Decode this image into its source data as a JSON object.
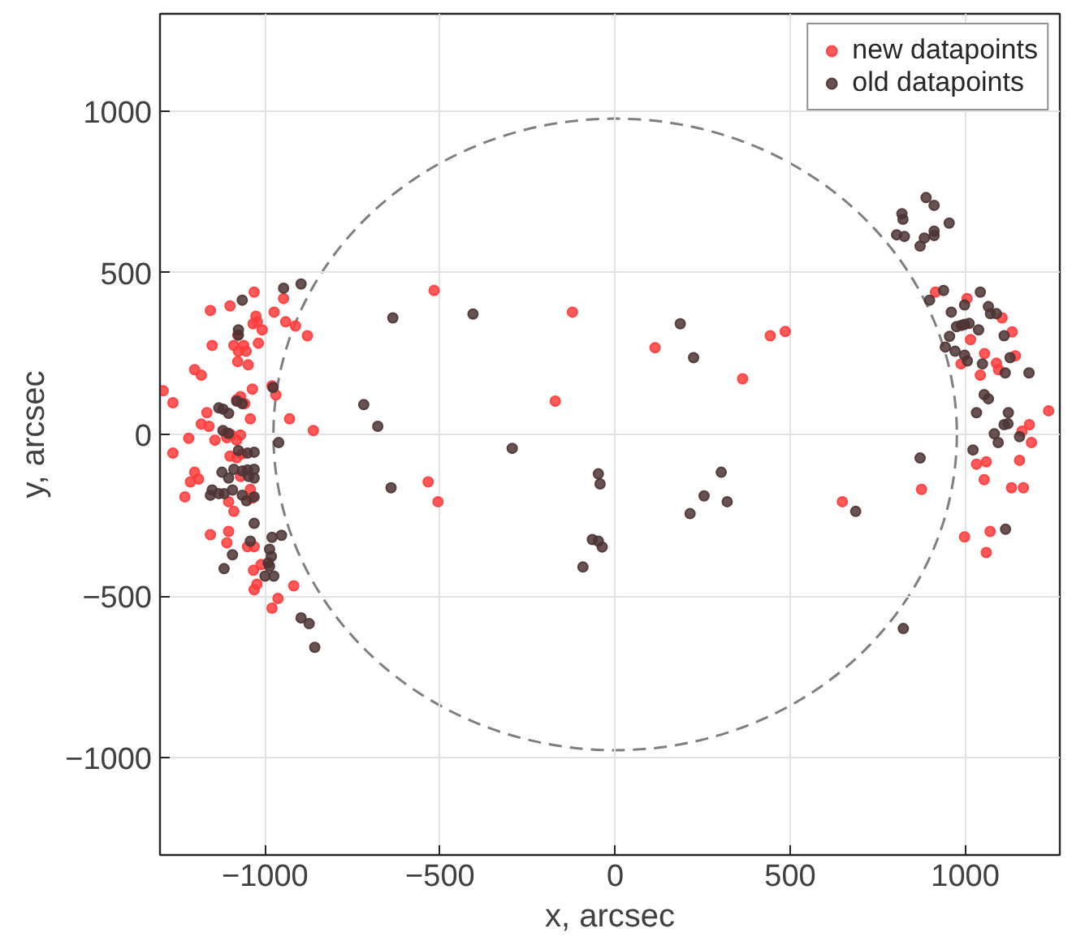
{
  "chart_data": {
    "type": "scatter",
    "xlabel": "x, arcsec",
    "ylabel": "y, arcsec",
    "xlim": [
      -1300,
      1270
    ],
    "ylim": [
      -1300,
      1300
    ],
    "xticks": [
      -1000,
      -500,
      0,
      500,
      1000
    ],
    "yticks": [
      -1000,
      -500,
      0,
      500,
      1000
    ],
    "grid": true,
    "legend": "top right",
    "marker": "circle",
    "series": [
      {
        "name": "new datapoints",
        "color": "#ff3c3c",
        "x": [
          -1031,
          -1156,
          -1100,
          -1026,
          -1034,
          -1022,
          -1008,
          -974,
          -947,
          -941,
          -913,
          -879,
          -1078,
          -1151,
          -1089,
          -1061,
          -1019,
          -1076,
          -1054,
          -1078,
          -1048,
          -1201,
          -1182,
          -1036,
          -1291,
          -1263,
          -980,
          -969,
          -1070,
          -1058,
          -1081,
          -1166,
          -1042,
          -930,
          -862,
          -1182,
          -1160,
          -1218,
          -1263,
          -1143,
          -1112,
          -1096,
          -1109,
          -1081,
          -1070,
          -1100,
          -1065,
          -1081,
          -1201,
          -1213,
          -1190,
          -1229,
          -1070,
          -1104,
          -1089,
          -1042,
          -1037,
          -1156,
          -1104,
          -1109,
          -1050,
          -1031,
          -1033,
          -1011,
          -1023,
          -1031,
          -963,
          -980,
          -918,
          -517,
          -122,
          -171,
          114,
          443,
          486,
          364,
          -534,
          -506,
          649,
          915,
          1005,
          1105,
          1134,
          1015,
          1055,
          1143,
          988,
          1089,
          1095,
          1043,
          1238,
          1183,
          1162,
          1189,
          1155,
          1032,
          1060,
          1054,
          1132,
          1166,
          875,
          998,
          1071,
          1060
        ],
        "values": [
          440,
          383,
          397,
          365,
          342,
          348,
          323,
          378,
          420,
          348,
          335,
          305,
          307,
          275,
          275,
          275,
          282,
          257,
          257,
          225,
          215,
          200,
          183,
          140,
          135,
          98,
          150,
          122,
          117,
          95,
          107,
          67,
          48,
          48,
          12,
          32,
          25,
          -12,
          -58,
          -18,
          3,
          -2,
          -10,
          -18,
          -2,
          -67,
          -60,
          -72,
          -117,
          -147,
          -138,
          -193,
          -130,
          -208,
          -238,
          -170,
          -197,
          -310,
          -300,
          -335,
          -347,
          -347,
          -420,
          -402,
          -463,
          -480,
          -507,
          -537,
          -468,
          445,
          378,
          103,
          268,
          305,
          318,
          172,
          -147,
          -208,
          -208,
          440,
          420,
          360,
          317,
          293,
          250,
          243,
          218,
          220,
          200,
          183,
          73,
          30,
          10,
          -25,
          -80,
          -92,
          -85,
          -140,
          -165,
          -165,
          -170,
          -317,
          -300,
          -365
        ]
      },
      {
        "name": "old datapoints",
        "color": "#4e3434",
        "x": [
          -947,
          -897,
          -1065,
          -1076,
          -1076,
          -1132,
          -1120,
          -1104,
          -1081,
          -1065,
          -977,
          -1120,
          -1104,
          -961,
          -1076,
          -1050,
          -1031,
          -1123,
          -1104,
          -1089,
          -1065,
          -1050,
          -1031,
          -1031,
          -1047,
          -1151,
          -1156,
          -1132,
          -1117,
          -1093,
          -1065,
          -1053,
          -1031,
          -1031,
          -1042,
          -980,
          -953,
          -1093,
          -1117,
          -987,
          -982,
          -991,
          -987,
          -1000,
          -975,
          -897,
          -874,
          -858,
          -635,
          -406,
          -718,
          -678,
          186,
          224,
          -294,
          -640,
          -48,
          -43,
          -65,
          -48,
          -37,
          -92,
          303,
          254,
          320,
          214,
          687,
          888,
          911,
          819,
          822,
          954,
          804,
          826,
          883,
          911,
          911,
          871,
          938,
          898,
          1043,
          960,
          998,
          1066,
          1072,
          1089,
          975,
          989,
          998,
          1011,
          1038,
          955,
          1111,
          943,
          971,
          998,
          1006,
          1049,
          1128,
          1114,
          1182,
          1054,
          1066,
          1032,
          1123,
          1111,
          1122,
          1083,
          1155,
          1094,
          1022,
          871,
          1115,
          823
        ],
        "values": [
          452,
          465,
          415,
          323,
          307,
          82,
          78,
          65,
          103,
          95,
          145,
          12,
          3,
          -25,
          -50,
          -58,
          -55,
          -117,
          -135,
          -108,
          -113,
          -110,
          -108,
          -135,
          -130,
          -172,
          -188,
          -183,
          -183,
          -172,
          -188,
          -205,
          -193,
          -275,
          -330,
          -318,
          -312,
          -372,
          -415,
          -355,
          -377,
          -397,
          -408,
          -438,
          -438,
          -567,
          -585,
          -658,
          360,
          372,
          92,
          25,
          342,
          237,
          -43,
          -165,
          -122,
          -153,
          -325,
          -330,
          -348,
          -410,
          -117,
          -190,
          -208,
          -245,
          -238,
          732,
          708,
          682,
          665,
          653,
          617,
          612,
          607,
          628,
          615,
          582,
          445,
          415,
          440,
          378,
          400,
          395,
          373,
          373,
          333,
          337,
          340,
          343,
          323,
          303,
          305,
          270,
          257,
          245,
          227,
          218,
          237,
          190,
          190,
          123,
          110,
          67,
          67,
          30,
          33,
          2,
          -7,
          -25,
          -48,
          -73,
          -293,
          -600
        ]
      }
    ]
  }
}
